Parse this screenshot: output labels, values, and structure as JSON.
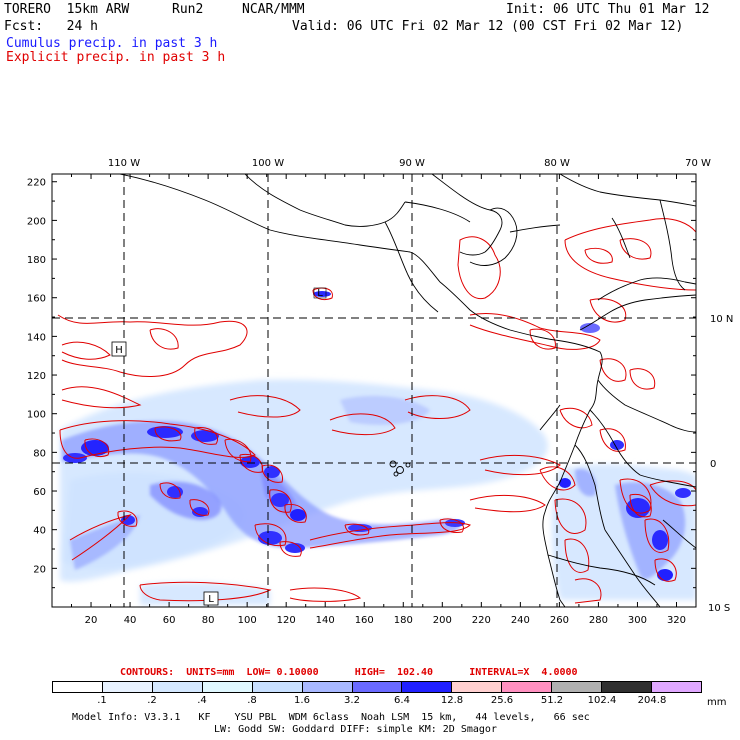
{
  "header": {
    "model": "TORERO  15km ARW",
    "run": "Run2",
    "org": "NCAR/MMM",
    "init": "Init: 06 UTC Thu 01 Mar 12",
    "fcst": "Fcst:   24 h",
    "valid": "Valid: 06 UTC Fri 02 Mar 12 (00 CST Fri 02 Mar 12)",
    "legend_cumulus": "Cumulus precip. in past 3 h",
    "legend_explicit": "Explicit precip. in past 3 h",
    "cumulus_color": "#1a1aff",
    "explicit_color": "#e00000"
  },
  "axes": {
    "lon_labels": [
      "110 W",
      "100 W",
      "90 W",
      "80 W",
      "70 W"
    ],
    "lat_labels": [
      "10 N",
      "0",
      "10 S"
    ],
    "x_ticks": [
      "20",
      "40",
      "60",
      "80",
      "100",
      "120",
      "140",
      "160",
      "180",
      "200",
      "220",
      "240",
      "260",
      "280",
      "300",
      "320"
    ],
    "y_ticks": [
      "20",
      "40",
      "60",
      "80",
      "100",
      "120",
      "140",
      "160",
      "180",
      "200",
      "220"
    ]
  },
  "markers": {
    "high": "H",
    "low1": "L",
    "low2": "L"
  },
  "contours": {
    "line": "CONTOURS:  UNITS=mm  LOW= 0.10000      HIGH=  102.40      INTERVAL=X  4.0000"
  },
  "colorbar": {
    "labels": [
      ".1",
      ".2",
      ".4",
      ".8",
      "1.6",
      "3.2",
      "6.4",
      "12.8",
      "25.6",
      "51.2",
      "102.4",
      "204.8"
    ],
    "unit": "mm",
    "colors": [
      "#ffffff",
      "#e8f2ff",
      "#d4e8ff",
      "#e0f8ff",
      "#c8e0ff",
      "#a8b8ff",
      "#6a6aff",
      "#2020ff",
      "#ffd0d0",
      "#ff90c0",
      "#b0b0b0",
      "#303030",
      "#e0a8ff"
    ]
  },
  "footer": {
    "line1": "Model Info: V3.3.1   KF    YSU PBL  WDM 6class  Noah LSM  15 km,   44 levels,   66 sec",
    "line2": "LW: Godd SW: Goddard DIFF: simple KM: 2D Smagor"
  }
}
